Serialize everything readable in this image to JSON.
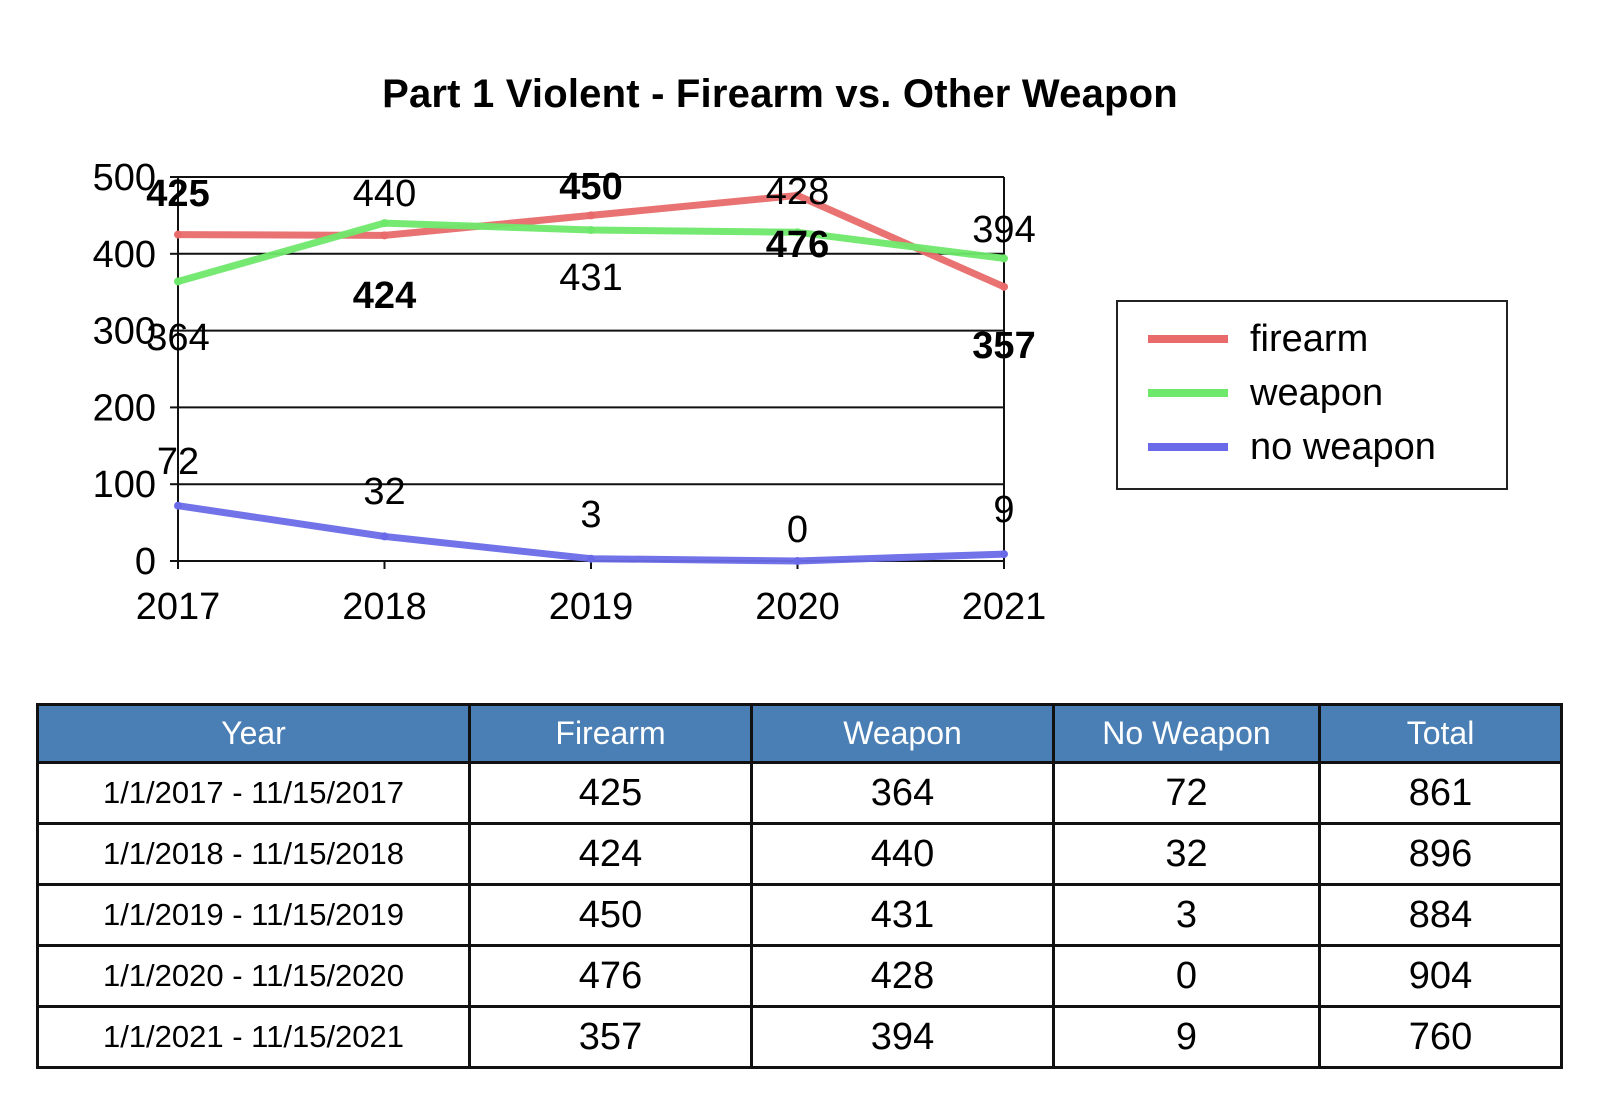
{
  "chart_data": {
    "type": "line",
    "title": "Part 1 Violent - Firearm vs. Other Weapon",
    "categories": [
      "2017",
      "2018",
      "2019",
      "2020",
      "2021"
    ],
    "yticks": [
      "0",
      "100",
      "200",
      "300",
      "400",
      "500"
    ],
    "ylim": [
      0,
      500
    ],
    "grid": true,
    "legend_position": "right",
    "series": [
      {
        "name": "firearm",
        "color": "#e86a6a",
        "values": [
          425,
          424,
          450,
          476,
          357
        ],
        "labels": [
          "425",
          "424",
          "450",
          "476",
          "357"
        ]
      },
      {
        "name": "weapon",
        "color": "#6ee86a",
        "values": [
          364,
          440,
          431,
          428,
          394
        ],
        "labels": [
          "364",
          "440",
          "431",
          "428",
          "394"
        ]
      },
      {
        "name": "no weapon",
        "color": "#6a6ae8",
        "values": [
          72,
          32,
          3,
          0,
          9
        ],
        "labels": [
          "72",
          "32",
          "3",
          "0",
          "9"
        ]
      }
    ]
  },
  "table": {
    "headers": [
      "Year",
      "Firearm",
      "Weapon",
      "No Weapon",
      "Total"
    ],
    "rows": [
      [
        "1/1/2017 - 11/15/2017",
        "425",
        "364",
        "72",
        "861"
      ],
      [
        "1/1/2018 - 11/15/2018",
        "424",
        "440",
        "32",
        "896"
      ],
      [
        "1/1/2019 - 11/15/2019",
        "450",
        "431",
        "3",
        "884"
      ],
      [
        "1/1/2020 - 11/15/2020",
        "476",
        "428",
        "0",
        "904"
      ],
      [
        "1/1/2021 - 11/15/2021",
        "357",
        "394",
        "9",
        "760"
      ]
    ]
  }
}
